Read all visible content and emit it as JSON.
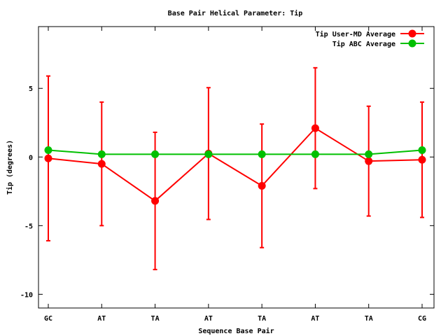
{
  "chart_data": {
    "type": "line",
    "title": "Base Pair Helical Parameter: Tip",
    "xlabel": "Sequence Base Pair",
    "ylabel": "Tip (degrees)",
    "categories": [
      "GC",
      "AT",
      "TA",
      "AT",
      "TA",
      "AT",
      "TA",
      "CG"
    ],
    "ylim": [
      -11,
      9.5
    ],
    "yticks": [
      -10,
      -5,
      0,
      5
    ],
    "yticklabels": [
      "-10",
      "-5",
      "0",
      "5"
    ],
    "grid": false,
    "legend_position": "top-right",
    "series": [
      {
        "name": "Tip User-MD Average",
        "color": "#ff0000",
        "values": [
          -0.1,
          -0.5,
          -3.2,
          0.25,
          -2.1,
          2.1,
          -0.3,
          -0.2
        ],
        "error": [
          6.0,
          4.5,
          5.0,
          4.8,
          4.5,
          4.4,
          4.0,
          4.2
        ]
      },
      {
        "name": "Tip ABC Average",
        "color": "#00c000",
        "values": [
          0.5,
          0.2,
          0.2,
          0.2,
          0.2,
          0.2,
          0.2,
          0.5
        ]
      }
    ]
  }
}
